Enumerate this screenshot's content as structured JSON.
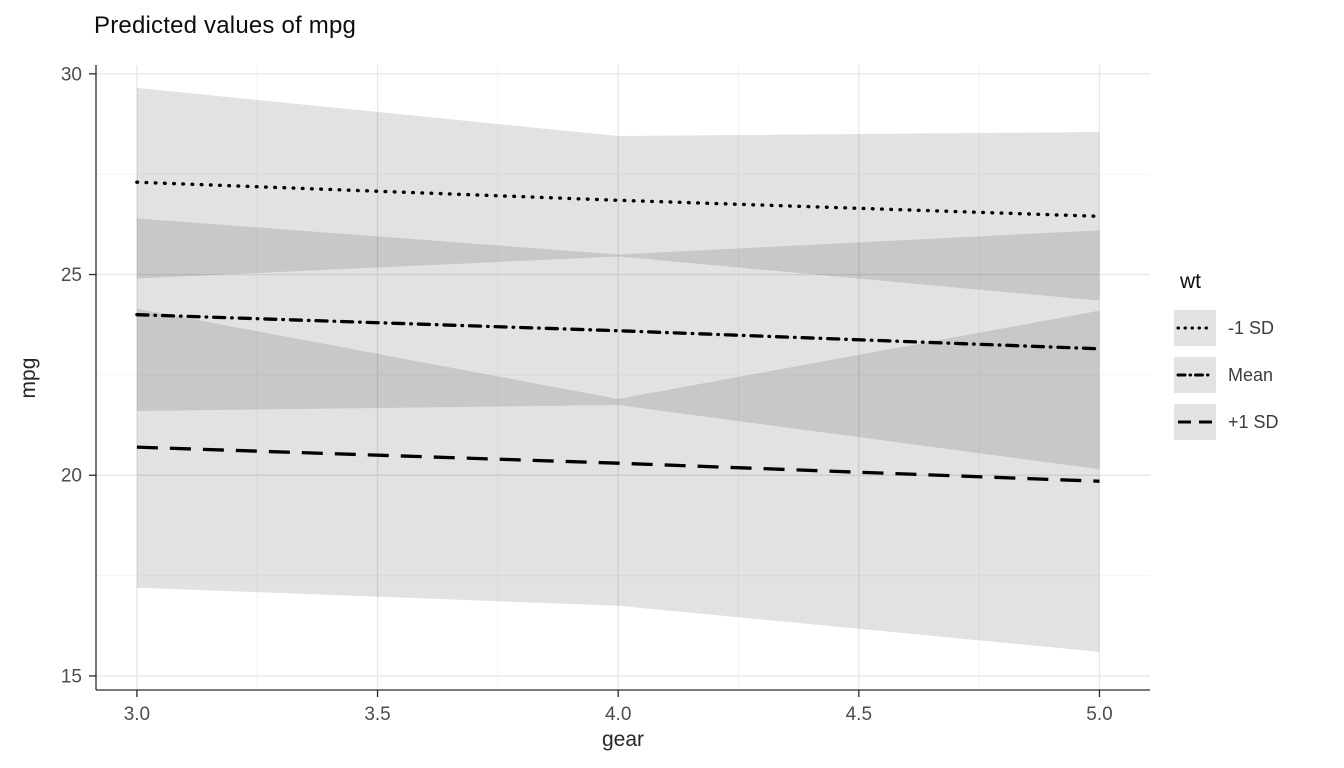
{
  "chart_data": {
    "type": "line",
    "title": "Predicted values of mpg",
    "xlabel": "gear",
    "ylabel": "mpg",
    "legend_title": "wt",
    "legend_position": "right",
    "grid": true,
    "background": "#ffffff",
    "line_color": "#000000",
    "ribbon_fill": "rgba(0,0,0,0.115)",
    "axis_text_color": "#4d4d4d",
    "grid_major_color": "#e8e8e8",
    "grid_minor_color": "#f4f4f4",
    "axis_line_color": "#2b2b2b",
    "xlim": [
      2.915,
      5.105
    ],
    "ylim": [
      14.65,
      30.22
    ],
    "x": [
      3.0,
      4.0,
      5.0
    ],
    "x_ticks": [
      {
        "value": 3.0,
        "label": "3.0"
      },
      {
        "value": 3.5,
        "label": "3.5"
      },
      {
        "value": 4.0,
        "label": "4.0"
      },
      {
        "value": 4.5,
        "label": "4.5"
      },
      {
        "value": 5.0,
        "label": "5.0"
      }
    ],
    "y_ticks": [
      {
        "value": 15,
        "label": "15"
      },
      {
        "value": 20,
        "label": "20"
      },
      {
        "value": 25,
        "label": "25"
      },
      {
        "value": 30,
        "label": "30"
      }
    ],
    "series": [
      {
        "name": "-1 SD",
        "linetype": "dotted",
        "y": [
          27.3,
          26.85,
          26.45
        ],
        "ci_low": [
          24.9,
          25.45,
          24.35
        ],
        "ci_high": [
          29.65,
          28.45,
          28.55
        ]
      },
      {
        "name": "Mean",
        "linetype": "dotdash",
        "y": [
          24.0,
          23.6,
          23.15
        ],
        "ci_low": [
          21.6,
          21.75,
          20.15
        ],
        "ci_high": [
          26.4,
          25.5,
          26.1
        ]
      },
      {
        "name": "+1 SD",
        "linetype": "longdash",
        "y": [
          20.7,
          20.3,
          19.85
        ],
        "ci_low": [
          17.2,
          16.75,
          15.6
        ],
        "ci_high": [
          24.15,
          21.9,
          24.1
        ]
      }
    ]
  }
}
